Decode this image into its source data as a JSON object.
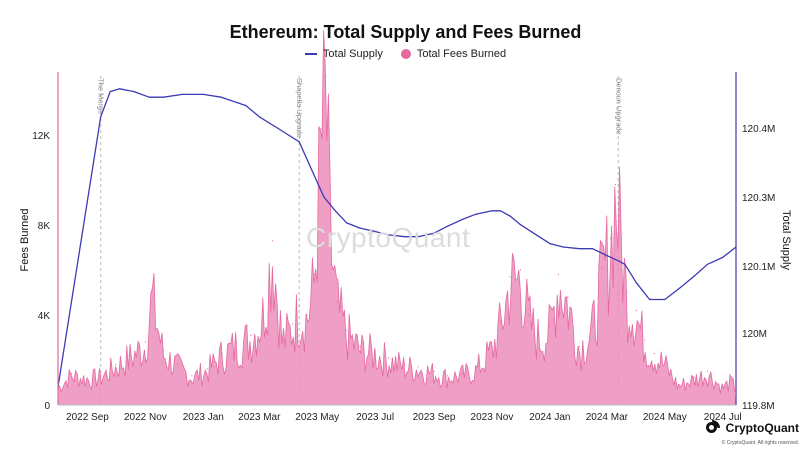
{
  "chart_data": {
    "type": "area+line",
    "title": "Ethereum: Total Supply and Fees Burned",
    "legend": {
      "placement": "top-center",
      "items": [
        "Total Supply",
        "Total Fees Burned"
      ]
    },
    "colors": {
      "supply": "#3b3bb3",
      "fees": "#e46aa0",
      "fees_fill": "#ec8dbb"
    },
    "x_tick_labels": [
      "2022 Sep",
      "2022 Nov",
      "2023 Jan",
      "2023 Mar",
      "2023 May",
      "2023 Jul",
      "2023 Sep",
      "2023 Nov",
      "2024 Jan",
      "2024 Mar",
      "2024 May",
      "2024 Jul"
    ],
    "x_range": [
      "2022-08-01",
      "2024-07-15"
    ],
    "y_left": {
      "label": "Fees Burned",
      "ticks": [
        "0",
        "4K",
        "8K",
        "12K"
      ],
      "range": [
        0,
        14800
      ]
    },
    "y_right": {
      "label": "Total Supply",
      "ticks": [
        "119.8M",
        "120M",
        "120.1M",
        "120.3M",
        "120.4M"
      ]
    },
    "events": [
      {
        "label": "The Merge",
        "date": "2022-09-15"
      },
      {
        "label": "Shapella Upgrade",
        "date": "2023-04-12"
      },
      {
        "label": "Dencun Upgrade",
        "date": "2024-03-13"
      }
    ],
    "series": [
      {
        "name": "Total Supply",
        "axis": "right",
        "x": [
          "2022-08-01",
          "2022-09-15",
          "2022-09-25",
          "2022-10-05",
          "2022-10-20",
          "2022-11-05",
          "2022-11-20",
          "2022-12-10",
          "2023-01-01",
          "2023-01-20",
          "2023-02-15",
          "2023-03-01",
          "2023-03-20",
          "2023-04-12",
          "2023-04-25",
          "2023-05-08",
          "2023-05-20",
          "2023-06-01",
          "2023-06-15",
          "2023-07-01",
          "2023-07-15",
          "2023-08-01",
          "2023-08-15",
          "2023-09-01",
          "2023-09-15",
          "2023-10-01",
          "2023-10-15",
          "2023-11-01",
          "2023-11-10",
          "2023-11-20",
          "2023-12-01",
          "2023-12-15",
          "2024-01-01",
          "2024-01-15",
          "2024-02-01",
          "2024-02-15",
          "2024-03-01",
          "2024-03-13",
          "2024-03-20",
          "2024-04-01",
          "2024-04-15",
          "2024-05-01",
          "2024-05-15",
          "2024-06-01",
          "2024-06-15",
          "2024-07-01",
          "2024-07-15"
        ],
        "y": [
          119.85,
          120.42,
          120.465,
          120.47,
          120.465,
          120.455,
          120.455,
          120.46,
          120.46,
          120.455,
          120.44,
          120.42,
          120.4,
          120.38,
          120.34,
          120.3,
          120.26,
          120.225,
          120.21,
          120.2,
          120.19,
          120.185,
          120.185,
          120.195,
          120.215,
          120.235,
          120.25,
          120.26,
          120.26,
          120.245,
          120.22,
          120.195,
          120.165,
          120.155,
          120.15,
          120.15,
          120.13,
          120.115,
          120.105,
          120.075,
          120.05,
          120.05,
          120.065,
          120.085,
          120.105,
          120.125,
          120.155
        ]
      },
      {
        "name": "Total Fees Burned",
        "axis": "left",
        "x": [
          "2022-08-01",
          "2022-08-15",
          "2022-09-01",
          "2022-09-15",
          "2022-10-01",
          "2022-10-15",
          "2022-11-01",
          "2022-11-08",
          "2022-11-20",
          "2022-12-05",
          "2022-12-20",
          "2023-01-05",
          "2023-01-20",
          "2023-02-05",
          "2023-02-20",
          "2023-03-05",
          "2023-03-15",
          "2023-03-25",
          "2023-04-05",
          "2023-04-12",
          "2023-04-20",
          "2023-04-28",
          "2023-05-05",
          "2023-05-10",
          "2023-05-15",
          "2023-05-22",
          "2023-06-01",
          "2023-06-15",
          "2023-07-01",
          "2023-07-15",
          "2023-08-01",
          "2023-08-15",
          "2023-09-01",
          "2023-09-15",
          "2023-10-01",
          "2023-10-15",
          "2023-11-01",
          "2023-11-10",
          "2023-11-20",
          "2023-12-01",
          "2023-12-10",
          "2023-12-20",
          "2024-01-01",
          "2024-01-10",
          "2024-01-20",
          "2024-02-01",
          "2024-02-15",
          "2024-02-25",
          "2024-03-05",
          "2024-03-10",
          "2024-03-15",
          "2024-03-22",
          "2024-04-01",
          "2024-04-10",
          "2024-04-20",
          "2024-05-01",
          "2024-05-15",
          "2024-06-01",
          "2024-06-15",
          "2024-07-01",
          "2024-07-10",
          "2024-07-15"
        ],
        "y": [
          800,
          1400,
          1200,
          1300,
          1800,
          2200,
          2800,
          5100,
          2400,
          1800,
          1300,
          1600,
          2300,
          2800,
          3100,
          4200,
          7300,
          3000,
          3600,
          4400,
          4000,
          5800,
          12300,
          14600,
          7800,
          4600,
          3300,
          2600,
          2400,
          2100,
          1800,
          1700,
          1500,
          1300,
          1400,
          1600,
          2600,
          3700,
          5700,
          6000,
          4000,
          3100,
          3500,
          5800,
          4800,
          2600,
          3500,
          6100,
          7400,
          9800,
          8200,
          5000,
          4200,
          2900,
          2300,
          1900,
          900,
          1200,
          1500,
          800,
          1100,
          700
        ]
      }
    ]
  },
  "watermark": "CryptoQuant",
  "brand": {
    "name": "CryptoQuant",
    "copyright": "© CryptoQuant. All rights reserved."
  }
}
